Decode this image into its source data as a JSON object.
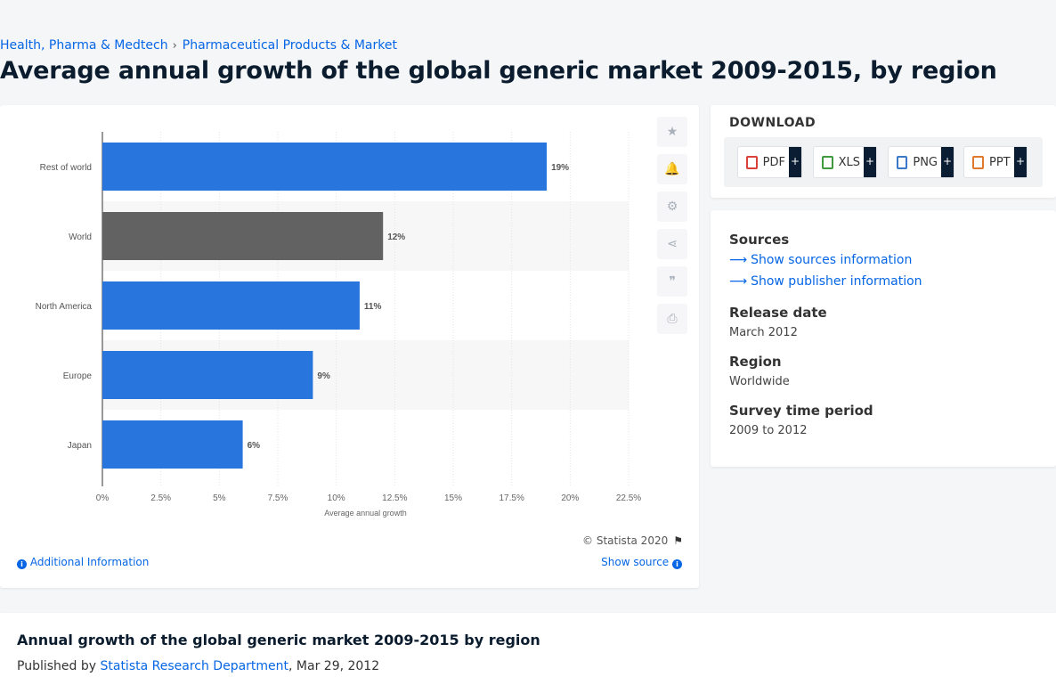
{
  "breadcrumb": [
    "Health, Pharma & Medtech",
    "Pharmaceutical Products & Market"
  ],
  "breadcrumb_sep": "›",
  "page_title": "Average annual growth of the global generic market 2009-2015, by region",
  "chart_data": {
    "type": "bar",
    "orientation": "horizontal",
    "categories": [
      "Rest of world",
      "World",
      "North America",
      "Europe",
      "Japan"
    ],
    "values": [
      19,
      12,
      11,
      9,
      6
    ],
    "data_labels": [
      "19%",
      "12%",
      "11%",
      "9%",
      "6%"
    ],
    "bar_colors": [
      "#2876dd",
      "#626262",
      "#2876dd",
      "#2876dd",
      "#2876dd"
    ],
    "xlabel": "Average annual growth",
    "ylabel": "",
    "xlim": [
      0,
      22.5
    ],
    "x_ticks": [
      "0%",
      "2.5%",
      "5%",
      "7.5%",
      "10%",
      "12.5%",
      "15%",
      "17.5%",
      "20%",
      "22.5%"
    ],
    "x_tick_values": [
      0,
      2.5,
      5,
      7.5,
      10,
      12.5,
      15,
      17.5,
      20,
      22.5
    ],
    "grid": true,
    "legend": "none"
  },
  "tools": [
    {
      "name": "star-icon",
      "glyph": "★"
    },
    {
      "name": "bell-icon",
      "glyph": "🔔"
    },
    {
      "name": "gear-icon",
      "glyph": "⚙"
    },
    {
      "name": "share-icon",
      "glyph": "⋖"
    },
    {
      "name": "quote-icon",
      "glyph": "❞"
    },
    {
      "name": "print-icon",
      "glyph": "⎙"
    }
  ],
  "copyright": "© Statista 2020",
  "additional_info": "Additional Information",
  "show_source": "Show source",
  "download": {
    "title": "DOWNLOAD",
    "buttons": [
      {
        "label": "PDF",
        "color": "#d9413a"
      },
      {
        "label": "XLS",
        "color": "#3f9a3f"
      },
      {
        "label": "PNG",
        "color": "#3a79c9"
      },
      {
        "label": "PPT",
        "color": "#e0792b"
      }
    ],
    "plus": "+"
  },
  "info": {
    "sources_h": "Sources",
    "show_sources": "Show sources information",
    "show_publisher": "Show publisher information",
    "release_h": "Release date",
    "release_v": "March 2012",
    "region_h": "Region",
    "region_v": "Worldwide",
    "survey_h": "Survey time period",
    "survey_v": "2009 to 2012"
  },
  "bottom": {
    "title": "Annual growth of the global generic market 2009-2015 by region",
    "published_by": "Published by",
    "dept": "Statista Research Department",
    "date": ", Mar 29, 2012"
  },
  "colors": {
    "accent": "#0666e5",
    "bar_blue": "#2876dd",
    "bar_gray": "#626262",
    "dark": "#0b1d33"
  }
}
